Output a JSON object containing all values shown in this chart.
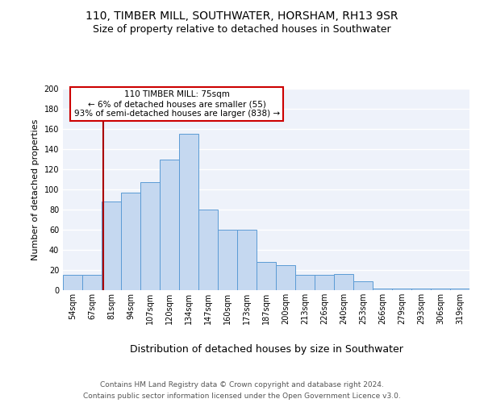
{
  "title1": "110, TIMBER MILL, SOUTHWATER, HORSHAM, RH13 9SR",
  "title2": "Size of property relative to detached houses in Southwater",
  "xlabel": "Distribution of detached houses by size in Southwater",
  "ylabel": "Number of detached properties",
  "categories": [
    "54sqm",
    "67sqm",
    "81sqm",
    "94sqm",
    "107sqm",
    "120sqm",
    "134sqm",
    "147sqm",
    "160sqm",
    "173sqm",
    "187sqm",
    "200sqm",
    "213sqm",
    "226sqm",
    "240sqm",
    "253sqm",
    "266sqm",
    "279sqm",
    "293sqm",
    "306sqm",
    "319sqm"
  ],
  "values": [
    15,
    15,
    88,
    97,
    107,
    130,
    155,
    80,
    60,
    60,
    28,
    25,
    15,
    15,
    16,
    9,
    2,
    2,
    2,
    2,
    2
  ],
  "bar_color": "#c5d8f0",
  "bar_edge_color": "#5b9bd5",
  "bar_width": 1.0,
  "ylim": [
    0,
    200
  ],
  "yticks": [
    0,
    20,
    40,
    60,
    80,
    100,
    120,
    140,
    160,
    180,
    200
  ],
  "red_line_color": "#aa0000",
  "annotation_title": "110 TIMBER MILL: 75sqm",
  "annotation_line1": "← 6% of detached houses are smaller (55)",
  "annotation_line2": "93% of semi-detached houses are larger (838) →",
  "annotation_box_color": "#ffffff",
  "annotation_box_edge": "#cc0000",
  "footer1": "Contains HM Land Registry data © Crown copyright and database right 2024.",
  "footer2": "Contains public sector information licensed under the Open Government Licence v3.0.",
  "bg_color": "#eef2fa",
  "grid_color": "#ffffff",
  "title1_fontsize": 10,
  "title2_fontsize": 9,
  "xlabel_fontsize": 9,
  "ylabel_fontsize": 8,
  "tick_fontsize": 7,
  "footer_fontsize": 6.5,
  "annot_fontsize": 7.5
}
